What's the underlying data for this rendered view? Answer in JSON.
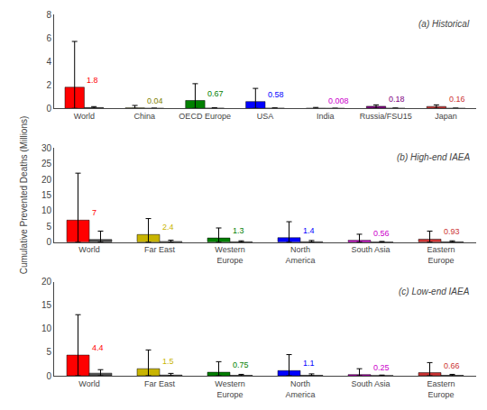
{
  "chart_data": [
    {
      "type": "bar",
      "title": "(a) Historical",
      "categories": [
        "World",
        "China",
        "OECD Europe",
        "USA",
        "India",
        "Russia/FSU15",
        "Japan"
      ],
      "series": [
        {
          "colors": [
            "#ff0000",
            "#808000",
            "#008000",
            "#0000ff",
            "#cc00cc",
            "#800080",
            "#cc3333"
          ],
          "values": [
            1.8,
            0.04,
            0.67,
            0.58,
            0.008,
            0.18,
            0.16
          ],
          "value_labels": [
            "1.8",
            "0.04",
            "0.67",
            "0.58",
            "0.008",
            "0.18",
            "0.16"
          ],
          "data_labels": true,
          "err_low": [
            0,
            0,
            0,
            0,
            0,
            0,
            0
          ],
          "err_high": [
            5.7,
            0.25,
            2.1,
            1.7,
            0.08,
            0.3,
            0.3
          ]
        },
        {
          "color": "#505050",
          "values": [
            0.07,
            0.005,
            0.02,
            0.015,
            0.001,
            0.01,
            0.005
          ],
          "err_low": [
            0,
            0,
            0,
            0,
            0,
            0,
            0
          ],
          "err_high": [
            0.15,
            0.01,
            0.05,
            0.04,
            0.003,
            0.025,
            0.015
          ]
        }
      ],
      "ylim": [
        0,
        8
      ],
      "yticks": [
        0,
        2,
        4,
        6,
        8
      ],
      "grid": false
    },
    {
      "type": "bar",
      "title": "(b) High-end IAEA",
      "ylabel": "Cumulative Prevented Deaths (Millions)",
      "categories": [
        "World",
        "Far East",
        "Western\nEurope",
        "North\nAmerica",
        "South Asia",
        "Eastern\nEurope"
      ],
      "series": [
        {
          "colors": [
            "#ff0000",
            "#c8b400",
            "#008000",
            "#0000ff",
            "#cc00cc",
            "#cc3333"
          ],
          "values": [
            7.0,
            2.4,
            1.3,
            1.4,
            0.56,
            0.93
          ],
          "value_labels": [
            "7",
            "2.4",
            "1.3",
            "1.4",
            "0.56",
            "0.93"
          ],
          "data_labels": true,
          "err_low": [
            0,
            0,
            0,
            0,
            0,
            0
          ],
          "err_high": [
            22.0,
            7.5,
            4.5,
            6.5,
            2.5,
            3.5
          ]
        },
        {
          "color": "#505050",
          "values": [
            0.8,
            0.2,
            0.1,
            0.12,
            0.05,
            0.1
          ],
          "err_low": [
            0,
            0,
            0,
            0,
            0,
            0
          ],
          "err_high": [
            3.5,
            0.6,
            0.4,
            0.5,
            0.2,
            0.4
          ]
        }
      ],
      "ylim": [
        0,
        30
      ],
      "yticks": [
        0,
        5,
        10,
        15,
        20,
        25,
        30
      ],
      "grid": false
    },
    {
      "type": "bar",
      "title": "(c) Low-end IAEA",
      "categories": [
        "World",
        "Far East",
        "Western\nEurope",
        "North\nAmerica",
        "South Asia",
        "Eastern\nEurope"
      ],
      "series": [
        {
          "colors": [
            "#ff0000",
            "#c8b400",
            "#008000",
            "#0000ff",
            "#cc00cc",
            "#cc3333"
          ],
          "values": [
            4.4,
            1.5,
            0.75,
            1.1,
            0.25,
            0.66
          ],
          "value_labels": [
            "4.4",
            "1.5",
            "0.75",
            "1.1",
            "0.25",
            "0.66"
          ],
          "data_labels": true,
          "err_low": [
            0,
            0,
            0,
            0,
            0,
            0
          ],
          "err_high": [
            13.0,
            5.5,
            3.0,
            4.5,
            1.5,
            2.8
          ]
        },
        {
          "color": "#505050",
          "values": [
            0.55,
            0.15,
            0.08,
            0.1,
            0.04,
            0.08
          ],
          "err_low": [
            0,
            0,
            0,
            0,
            0,
            0
          ],
          "err_high": [
            1.3,
            0.5,
            0.3,
            0.4,
            0.15,
            0.3
          ]
        }
      ],
      "ylim": [
        0,
        20
      ],
      "yticks": [
        0,
        5,
        10,
        15,
        20
      ],
      "grid": false
    }
  ]
}
